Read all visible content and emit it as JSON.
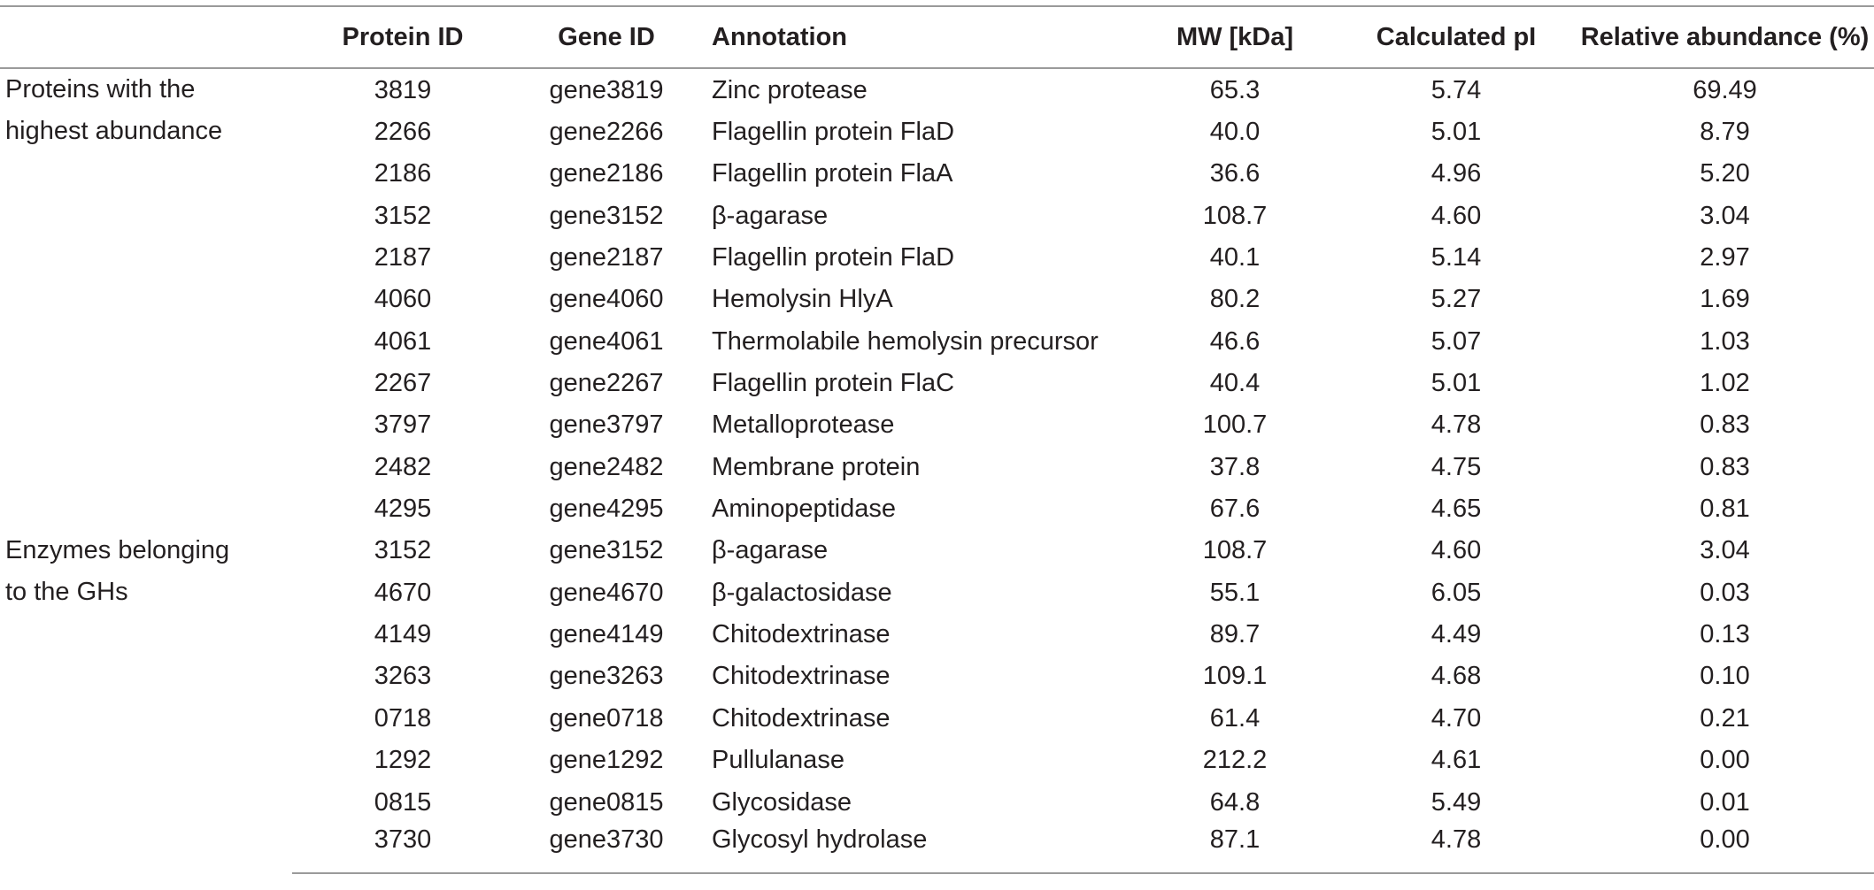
{
  "columns": [
    "",
    "Protein ID",
    "Gene ID",
    "Annotation",
    "MW [kDa]",
    "Calculated pI",
    "Relative abundance (%)"
  ],
  "groups": [
    {
      "label_lines": [
        "Proteins with the",
        "highest abundance"
      ],
      "rows": [
        {
          "protein_id": "3819",
          "gene_id": "gene3819",
          "annotation": "Zinc protease",
          "mw": "65.3",
          "pi": "5.74",
          "abundance": "69.49"
        },
        {
          "protein_id": "2266",
          "gene_id": "gene2266",
          "annotation": "Flagellin protein FlaD",
          "mw": "40.0",
          "pi": "5.01",
          "abundance": "8.79"
        },
        {
          "protein_id": "2186",
          "gene_id": "gene2186",
          "annotation": "Flagellin protein FlaA",
          "mw": "36.6",
          "pi": "4.96",
          "abundance": "5.20"
        },
        {
          "protein_id": "3152",
          "gene_id": "gene3152",
          "annotation": "β-agarase",
          "mw": "108.7",
          "pi": "4.60",
          "abundance": "3.04"
        },
        {
          "protein_id": "2187",
          "gene_id": "gene2187",
          "annotation": "Flagellin protein FlaD",
          "mw": "40.1",
          "pi": "5.14",
          "abundance": "2.97"
        },
        {
          "protein_id": "4060",
          "gene_id": "gene4060",
          "annotation": "Hemolysin HlyA",
          "mw": "80.2",
          "pi": "5.27",
          "abundance": "1.69"
        },
        {
          "protein_id": "4061",
          "gene_id": "gene4061",
          "annotation": "Thermolabile hemolysin precursor",
          "mw": "46.6",
          "pi": "5.07",
          "abundance": "1.03"
        },
        {
          "protein_id": "2267",
          "gene_id": "gene2267",
          "annotation": "Flagellin protein FlaC",
          "mw": "40.4",
          "pi": "5.01",
          "abundance": "1.02"
        },
        {
          "protein_id": "3797",
          "gene_id": "gene3797",
          "annotation": "Metalloprotease",
          "mw": "100.7",
          "pi": "4.78",
          "abundance": "0.83"
        },
        {
          "protein_id": "2482",
          "gene_id": "gene2482",
          "annotation": "Membrane protein",
          "mw": "37.8",
          "pi": "4.75",
          "abundance": "0.83"
        },
        {
          "protein_id": "4295",
          "gene_id": "gene4295",
          "annotation": "Aminopeptidase",
          "mw": "67.6",
          "pi": "4.65",
          "abundance": "0.81"
        }
      ]
    },
    {
      "label_lines": [
        "Enzymes belonging",
        "to the GHs"
      ],
      "rows": [
        {
          "protein_id": "3152",
          "gene_id": "gene3152",
          "annotation": "β-agarase",
          "mw": "108.7",
          "pi": "4.60",
          "abundance": "3.04"
        },
        {
          "protein_id": "4670",
          "gene_id": "gene4670",
          "annotation": "β-galactosidase",
          "mw": "55.1",
          "pi": "6.05",
          "abundance": "0.03"
        },
        {
          "protein_id": "4149",
          "gene_id": "gene4149",
          "annotation": "Chitodextrinase",
          "mw": "89.7",
          "pi": "4.49",
          "abundance": "0.13"
        },
        {
          "protein_id": "3263",
          "gene_id": "gene3263",
          "annotation": "Chitodextrinase",
          "mw": "109.1",
          "pi": "4.68",
          "abundance": "0.10"
        },
        {
          "protein_id": "0718",
          "gene_id": "gene0718",
          "annotation": "Chitodextrinase",
          "mw": "61.4",
          "pi": "4.70",
          "abundance": "0.21"
        },
        {
          "protein_id": "1292",
          "gene_id": "gene1292",
          "annotation": "Pullulanase",
          "mw": "212.2",
          "pi": "4.61",
          "abundance": "0.00"
        },
        {
          "protein_id": "0815",
          "gene_id": "gene0815",
          "annotation": "Glycosidase",
          "mw": "64.8",
          "pi": "5.49",
          "abundance": "0.01"
        },
        {
          "protein_id": "3730",
          "gene_id": "gene3730",
          "annotation": "Glycosyl hydrolase",
          "mw": "87.1",
          "pi": "4.78",
          "abundance": "0.00"
        }
      ]
    }
  ]
}
